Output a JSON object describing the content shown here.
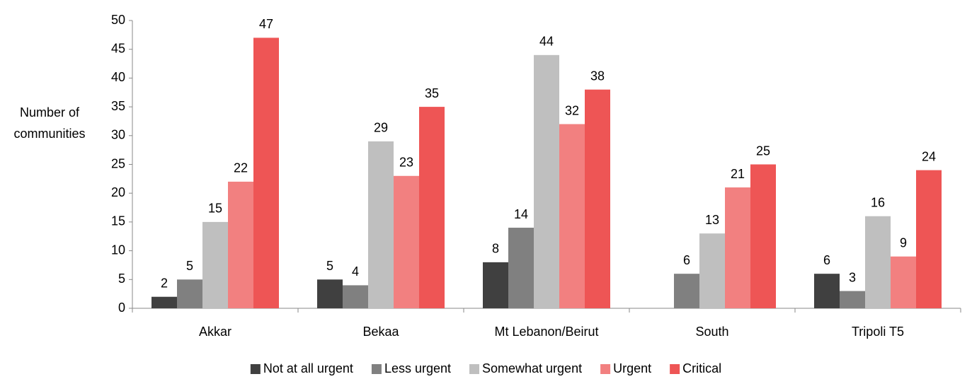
{
  "chart_data": {
    "type": "bar",
    "y_label": [
      "Number of",
      "communities"
    ],
    "categories": [
      "Akkar",
      "Bekaa",
      "Mt Lebanon/Beirut",
      "South",
      "Tripoli T5"
    ],
    "series": [
      {
        "name": "Not at all urgent",
        "color": "#404040",
        "values": [
          2,
          5,
          8,
          null,
          6
        ]
      },
      {
        "name": "Less urgent",
        "color": "#808080",
        "values": [
          5,
          4,
          14,
          6,
          3
        ]
      },
      {
        "name": "Somewhat urgent",
        "color": "#bfbfbf",
        "values": [
          15,
          29,
          44,
          13,
          16
        ]
      },
      {
        "name": "Urgent",
        "color": "#f28080",
        "values": [
          22,
          23,
          32,
          21,
          9
        ]
      },
      {
        "name": "Critical",
        "color": "#ee5555",
        "values": [
          47,
          35,
          38,
          25,
          24
        ]
      }
    ],
    "ylim": [
      0,
      50
    ],
    "yticks": [
      0,
      5,
      10,
      15,
      20,
      25,
      30,
      35,
      40,
      45,
      50
    ],
    "grid": false,
    "legend": "bottom"
  }
}
